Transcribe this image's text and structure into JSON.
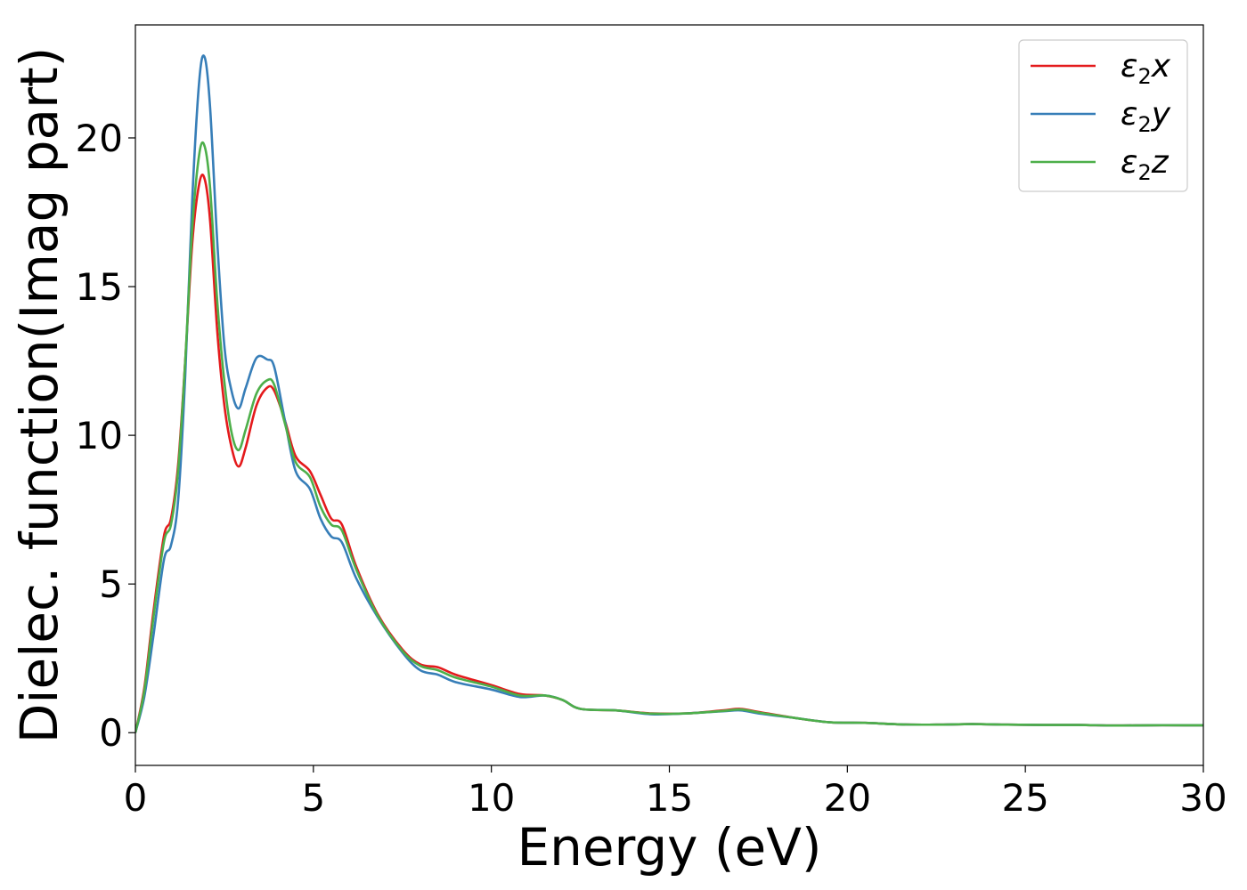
{
  "chart_data": {
    "type": "line",
    "xlabel": "Energy (eV)",
    "ylabel": "Dielec. function(Imag part)",
    "xlim": [
      0,
      30
    ],
    "ylim": [
      -1.1,
      23.8
    ],
    "xticks": [
      0,
      5,
      10,
      15,
      20,
      25,
      30
    ],
    "yticks": [
      0,
      5,
      10,
      15,
      20
    ],
    "grid": false,
    "legend_position": "top-right",
    "series": [
      {
        "name_base": "ε",
        "name_sub": "2",
        "name_var": "x",
        "color": "#e41a1c",
        "x": [
          0,
          0.25,
          0.5,
          0.8,
          1.0,
          1.2,
          1.4,
          1.6,
          1.8,
          1.95,
          2.1,
          2.3,
          2.5,
          2.7,
          2.9,
          3.1,
          3.4,
          3.7,
          3.9,
          4.2,
          4.5,
          4.9,
          5.2,
          5.5,
          5.8,
          6.2,
          6.8,
          7.5,
          8.0,
          8.5,
          9.0,
          10.0,
          10.8,
          11.5,
          12.0,
          12.5,
          13.5,
          14.5,
          15.5,
          16.5,
          17.0,
          17.5,
          18.5,
          19.5,
          20.5,
          21.5,
          22.5,
          23.5,
          24.5,
          25.5,
          26.5,
          27.5,
          28.5,
          29.5,
          30
        ],
        "y": [
          0,
          1.5,
          4.0,
          6.6,
          7.2,
          9.0,
          12.5,
          16.5,
          18.5,
          18.6,
          17.2,
          13.5,
          11.0,
          9.6,
          8.95,
          9.6,
          11.0,
          11.6,
          11.5,
          10.5,
          9.3,
          8.8,
          8.0,
          7.2,
          7.0,
          5.6,
          4.0,
          2.8,
          2.3,
          2.2,
          1.95,
          1.6,
          1.3,
          1.25,
          1.1,
          0.8,
          0.75,
          0.65,
          0.65,
          0.75,
          0.8,
          0.7,
          0.5,
          0.35,
          0.33,
          0.28,
          0.27,
          0.29,
          0.27,
          0.26,
          0.26,
          0.24,
          0.25,
          0.25,
          0.25
        ]
      },
      {
        "name_base": "ε",
        "name_sub": "2",
        "name_var": "y",
        "color": "#377eb8",
        "x": [
          0,
          0.25,
          0.5,
          0.8,
          1.0,
          1.2,
          1.4,
          1.6,
          1.8,
          1.95,
          2.1,
          2.3,
          2.5,
          2.7,
          2.9,
          3.1,
          3.4,
          3.7,
          3.9,
          4.2,
          4.5,
          4.9,
          5.2,
          5.5,
          5.8,
          6.2,
          6.8,
          7.5,
          8.0,
          8.5,
          9.0,
          10.0,
          10.8,
          11.5,
          12.0,
          12.5,
          13.5,
          14.5,
          15.5,
          16.5,
          17.0,
          17.5,
          18.5,
          19.5,
          20.5,
          21.5,
          22.5,
          23.5,
          24.5,
          25.5,
          26.5,
          27.5,
          28.5,
          29.5,
          30
        ],
        "y": [
          0,
          1.2,
          3.2,
          5.8,
          6.3,
          7.8,
          12.0,
          18.0,
          22.0,
          22.7,
          21.0,
          16.5,
          13.0,
          11.5,
          10.9,
          11.6,
          12.6,
          12.55,
          12.3,
          10.5,
          8.8,
          8.2,
          7.2,
          6.6,
          6.4,
          5.2,
          3.9,
          2.7,
          2.1,
          1.95,
          1.7,
          1.45,
          1.2,
          1.25,
          1.1,
          0.8,
          0.75,
          0.62,
          0.65,
          0.72,
          0.75,
          0.65,
          0.5,
          0.35,
          0.33,
          0.28,
          0.27,
          0.29,
          0.27,
          0.26,
          0.26,
          0.24,
          0.25,
          0.25,
          0.25
        ]
      },
      {
        "name_base": "ε",
        "name_sub": "2",
        "name_var": "z",
        "color": "#4daf4a",
        "x": [
          0,
          0.25,
          0.5,
          0.8,
          1.0,
          1.2,
          1.4,
          1.6,
          1.8,
          1.95,
          2.1,
          2.3,
          2.5,
          2.7,
          2.9,
          3.1,
          3.4,
          3.7,
          3.9,
          4.2,
          4.5,
          4.9,
          5.2,
          5.5,
          5.8,
          6.2,
          6.8,
          7.5,
          8.0,
          8.5,
          9.0,
          10.0,
          10.8,
          11.5,
          12.0,
          12.5,
          13.5,
          14.5,
          15.5,
          16.5,
          17.0,
          17.5,
          18.5,
          19.5,
          20.5,
          21.5,
          22.5,
          23.5,
          24.5,
          25.5,
          26.5,
          27.5,
          28.5,
          29.5,
          30
        ],
        "y": [
          0,
          1.4,
          3.8,
          6.4,
          7.0,
          8.8,
          12.5,
          17.0,
          19.5,
          19.7,
          18.3,
          14.5,
          11.8,
          10.1,
          9.5,
          10.2,
          11.4,
          11.85,
          11.7,
          10.4,
          9.1,
          8.6,
          7.6,
          7.0,
          6.8,
          5.5,
          3.95,
          2.75,
          2.25,
          2.1,
          1.85,
          1.55,
          1.25,
          1.25,
          1.1,
          0.8,
          0.75,
          0.64,
          0.65,
          0.73,
          0.78,
          0.68,
          0.5,
          0.35,
          0.33,
          0.28,
          0.27,
          0.29,
          0.27,
          0.26,
          0.26,
          0.24,
          0.25,
          0.25,
          0.25
        ]
      }
    ]
  }
}
